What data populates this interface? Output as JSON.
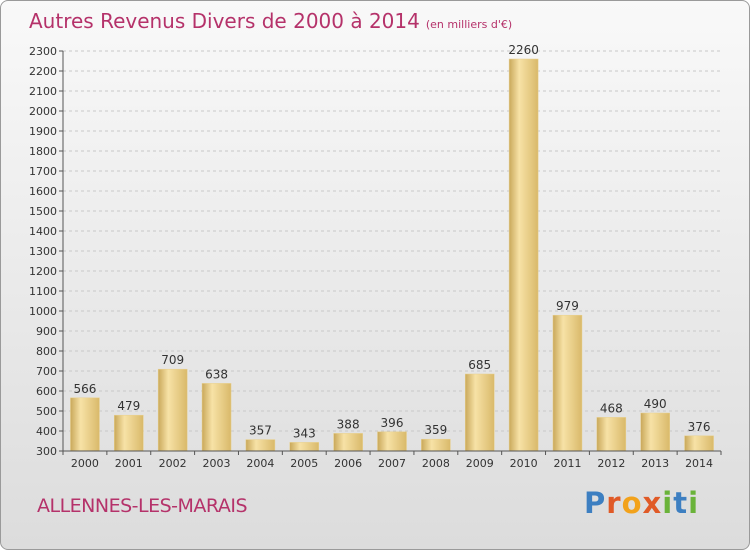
{
  "header": {
    "title": "Autres Revenus Divers de 2000 à 2014",
    "unit": "(en milliers d'€)"
  },
  "footer": {
    "location": "ALLENNES-LES-MARAIS",
    "brand": "Proxiti"
  },
  "colors": {
    "title": "#b5326a",
    "bar_light": "#f7e2a6",
    "bar_dark": "#c9a85a",
    "grid": "#c8c8c8"
  },
  "chart_data": {
    "type": "bar",
    "title": "Autres Revenus Divers de 2000 à 2014",
    "subtitle": "(en milliers d'€)",
    "xlabel": "",
    "ylabel": "",
    "categories": [
      "2000",
      "2001",
      "2002",
      "2003",
      "2004",
      "2005",
      "2006",
      "2007",
      "2008",
      "2009",
      "2010",
      "2011",
      "2012",
      "2013",
      "2014"
    ],
    "values": [
      566,
      479,
      709,
      638,
      357,
      343,
      388,
      396,
      359,
      685,
      2260,
      979,
      468,
      490,
      376
    ],
    "ylim": [
      300,
      2300
    ],
    "yticks": [
      300,
      400,
      500,
      600,
      700,
      800,
      900,
      1000,
      1100,
      1200,
      1300,
      1400,
      1500,
      1600,
      1700,
      1800,
      1900,
      2000,
      2100,
      2200,
      2300
    ],
    "grid": true,
    "legend": "none"
  }
}
